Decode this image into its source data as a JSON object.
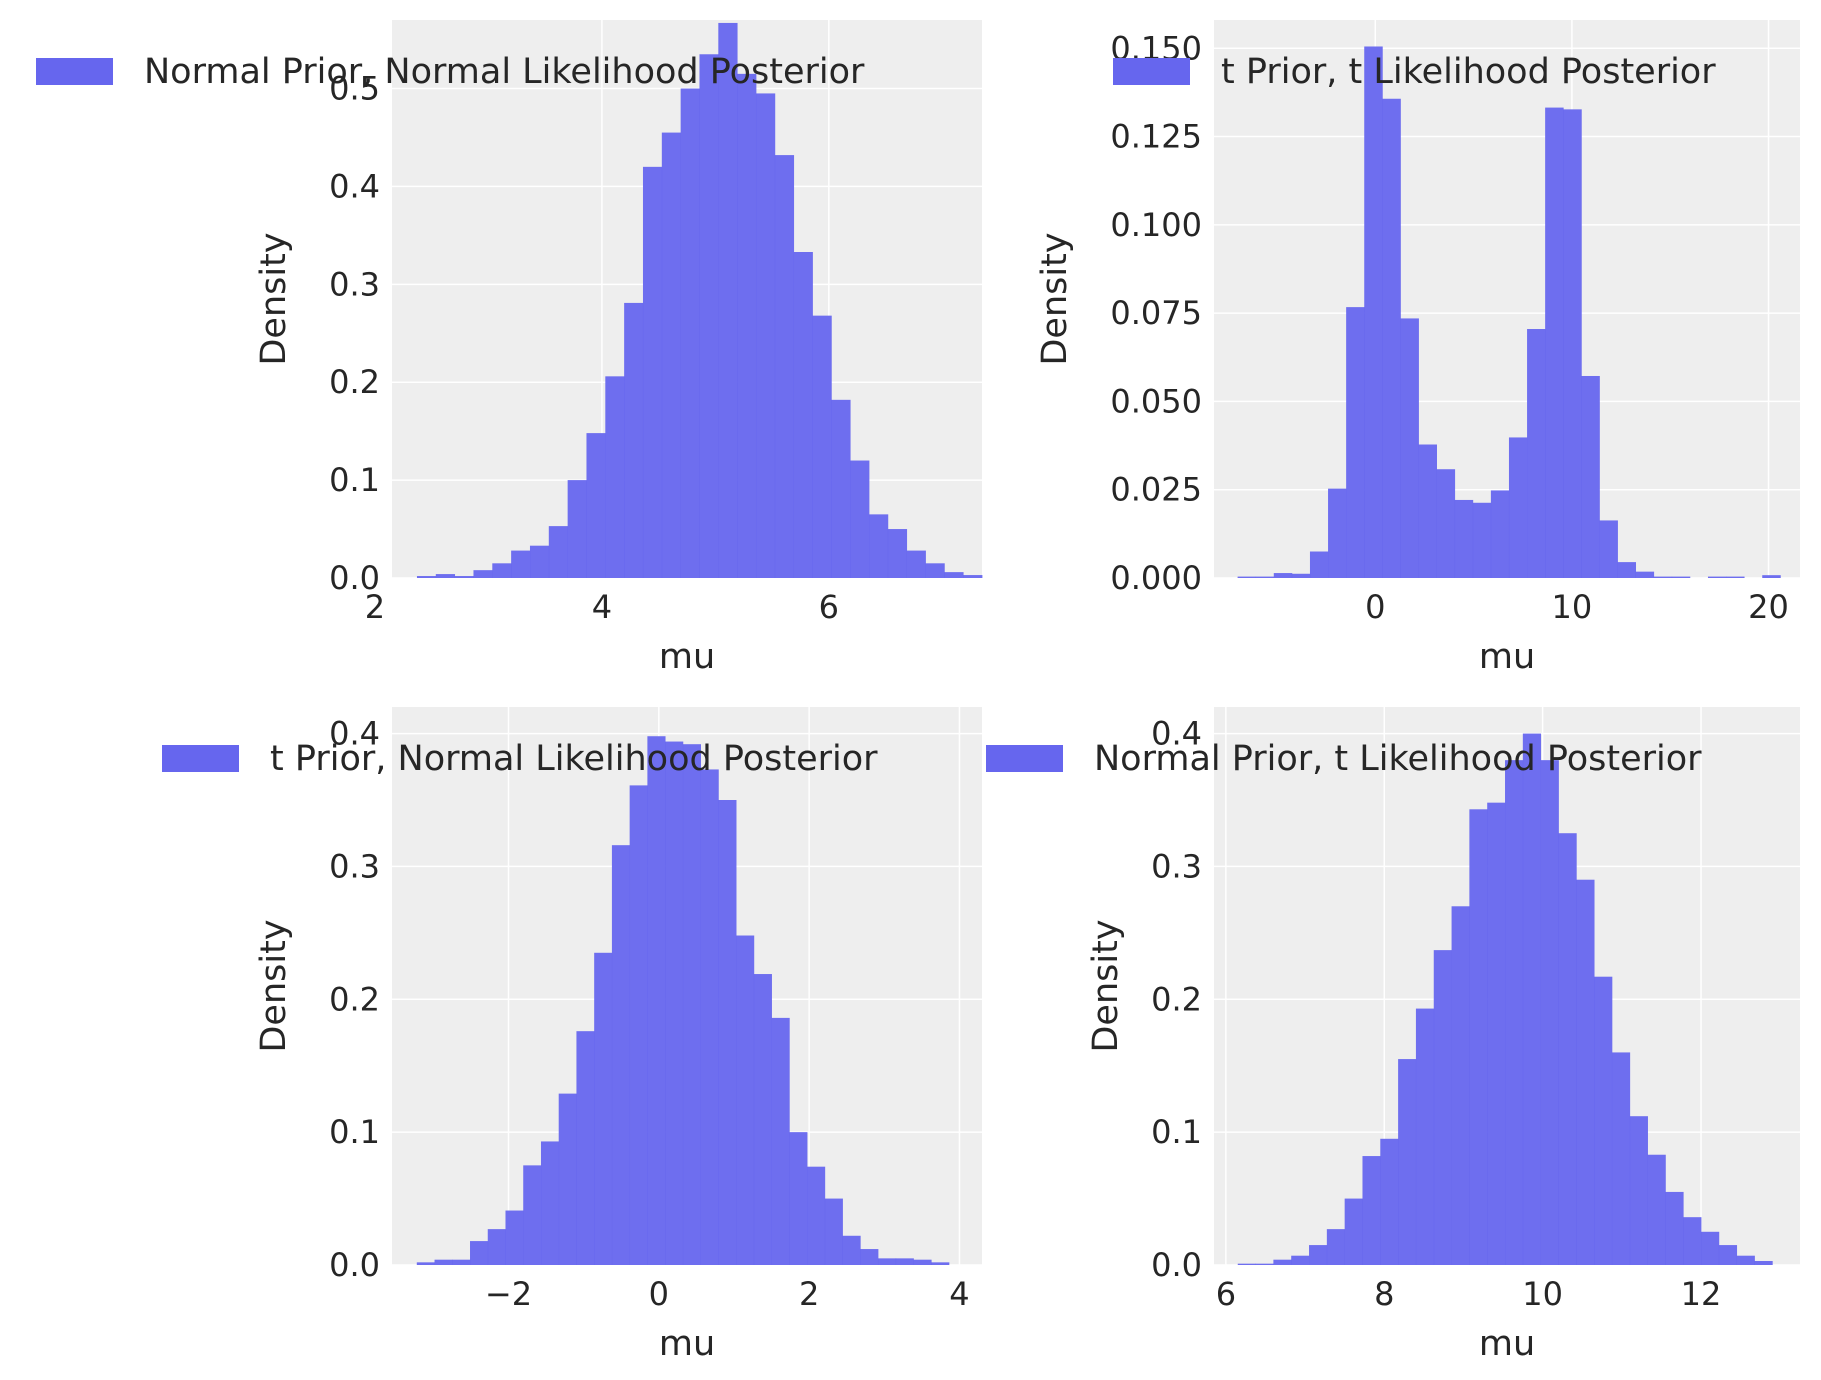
{
  "style": {
    "bar_color": "#6666ee",
    "plot_bg": "#eeeeee",
    "grid_color": "#ffffff",
    "text_color": "#262626"
  },
  "chart_data": [
    {
      "type": "bar",
      "legend": "Normal Prior, Normal Likelihood Posterior",
      "legend_position": "top-left",
      "xlabel": "mu",
      "ylabel": "Density",
      "xlim": [
        2.15,
        7.35
      ],
      "ylim": [
        0,
        0.57
      ],
      "xticks": [
        2,
        4,
        6
      ],
      "xtick_labels": [
        "2",
        "4",
        "6"
      ],
      "yticks": [
        0.0,
        0.1,
        0.2,
        0.3,
        0.4,
        0.5
      ],
      "ytick_labels": [
        "0.0",
        "0.1",
        "0.2",
        "0.3",
        "0.4",
        "0.5"
      ],
      "grid": true,
      "bin_start": 2.37,
      "bin_width": 0.166,
      "values": [
        0.002,
        0.004,
        0.002,
        0.008,
        0.015,
        0.028,
        0.033,
        0.053,
        0.1,
        0.148,
        0.206,
        0.281,
        0.42,
        0.455,
        0.5,
        0.535,
        0.567,
        0.515,
        0.495,
        0.432,
        0.333,
        0.268,
        0.182,
        0.12,
        0.065,
        0.05,
        0.028,
        0.015,
        0.006,
        0.003
      ]
    },
    {
      "type": "bar",
      "legend": "t Prior, t Likelihood Posterior",
      "legend_position": "top-right",
      "xlabel": "mu",
      "ylabel": "Density",
      "xlim": [
        -8.2,
        21.6
      ],
      "ylim": [
        0,
        0.158
      ],
      "xticks": [
        0,
        10,
        20
      ],
      "xtick_labels": [
        "0",
        "10",
        "20"
      ],
      "yticks": [
        0.0,
        0.025,
        0.05,
        0.075,
        0.1,
        0.125,
        0.15
      ],
      "ytick_labels": [
        "0.000",
        "0.025",
        "0.050",
        "0.075",
        "0.100",
        "0.125",
        "0.150"
      ],
      "grid": true,
      "bin_start": -7.0,
      "bin_width": 0.92,
      "values": [
        0.0004,
        0.0004,
        0.0014,
        0.0012,
        0.0075,
        0.0253,
        0.0767,
        0.1505,
        0.1357,
        0.0735,
        0.0378,
        0.0308,
        0.0221,
        0.0213,
        0.0248,
        0.0398,
        0.0705,
        0.1332,
        0.1327,
        0.0572,
        0.0163,
        0.0045,
        0.0018,
        0.0004,
        0.0004,
        0.0,
        0.0004,
        0.0004,
        0.0,
        0.0008
      ]
    },
    {
      "type": "bar",
      "legend": "t Prior, Normal Likelihood Posterior",
      "legend_position": "top-right",
      "xlabel": "mu",
      "ylabel": "Density",
      "xlim": [
        -3.55,
        4.3
      ],
      "ylim": [
        0,
        0.42
      ],
      "xticks": [
        -2,
        0,
        2,
        4
      ],
      "xtick_labels": [
        "−2",
        "0",
        "2",
        "4"
      ],
      "yticks": [
        0.0,
        0.1,
        0.2,
        0.3,
        0.4
      ],
      "ytick_labels": [
        "0.0",
        "0.1",
        "0.2",
        "0.3",
        "0.4"
      ],
      "grid": true,
      "bin_start": -3.22,
      "bin_width": 0.236,
      "values": [
        0.002,
        0.004,
        0.004,
        0.018,
        0.027,
        0.041,
        0.075,
        0.093,
        0.129,
        0.176,
        0.235,
        0.316,
        0.361,
        0.398,
        0.394,
        0.392,
        0.373,
        0.35,
        0.248,
        0.219,
        0.186,
        0.1,
        0.074,
        0.05,
        0.022,
        0.012,
        0.005,
        0.005,
        0.004,
        0.002
      ]
    },
    {
      "type": "bar",
      "legend": "Normal Prior, t Likelihood Posterior",
      "legend_position": "top-right",
      "xlabel": "mu",
      "ylabel": "Density",
      "xlim": [
        5.85,
        13.25
      ],
      "ylim": [
        0,
        0.42
      ],
      "xticks": [
        6,
        8,
        10,
        12
      ],
      "xtick_labels": [
        "6",
        "8",
        "10",
        "12"
      ],
      "yticks": [
        0.0,
        0.1,
        0.2,
        0.3,
        0.4
      ],
      "ytick_labels": [
        "0.0",
        "0.1",
        "0.2",
        "0.3",
        "0.4"
      ],
      "grid": true,
      "bin_start": 6.15,
      "bin_width": 0.225,
      "values": [
        0.001,
        0.001,
        0.004,
        0.007,
        0.015,
        0.027,
        0.05,
        0.082,
        0.095,
        0.155,
        0.193,
        0.237,
        0.27,
        0.343,
        0.348,
        0.38,
        0.4,
        0.38,
        0.325,
        0.29,
        0.217,
        0.16,
        0.112,
        0.083,
        0.055,
        0.036,
        0.025,
        0.015,
        0.007,
        0.003
      ]
    }
  ]
}
